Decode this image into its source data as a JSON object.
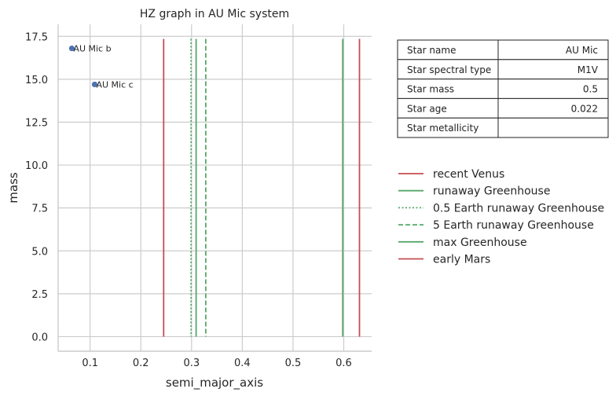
{
  "chart_data": {
    "type": "scatter",
    "title": "HZ graph in AU Mic system",
    "xlabel": "semi_major_axis",
    "ylabel": "mass",
    "xlim": [
      0.037,
      0.655
    ],
    "ylim": [
      -0.85,
      18.2
    ],
    "xticks": [
      0.1,
      0.2,
      0.3,
      0.4,
      0.5,
      0.6
    ],
    "xtick_labels": [
      "0.1",
      "0.2",
      "0.3",
      "0.4",
      "0.5",
      "0.6"
    ],
    "yticks": [
      0.0,
      2.5,
      5.0,
      7.5,
      10.0,
      12.5,
      15.0,
      17.5
    ],
    "ytick_labels": [
      "0.0",
      "2.5",
      "5.0",
      "7.5",
      "10.0",
      "12.5",
      "15.0",
      "17.5"
    ],
    "grid": true,
    "points": [
      {
        "label": "AU Mic b",
        "x": 0.064,
        "y": 16.8,
        "color": "#4c72b0"
      },
      {
        "label": "AU Mic c",
        "x": 0.109,
        "y": 14.7,
        "color": "#4c72b0"
      }
    ],
    "vlines": [
      {
        "name": "recent Venus",
        "x": 0.245,
        "color": "#c44e52",
        "style": "solid"
      },
      {
        "name": "runaway Greenhouse",
        "x": 0.309,
        "color": "#55a868",
        "style": "solid"
      },
      {
        "name": "0.5 Earth runaway Greenhouse",
        "x": 0.299,
        "color": "#55a868",
        "style": "dotted"
      },
      {
        "name": "5 Earth runaway Greenhouse",
        "x": 0.328,
        "color": "#55a868",
        "style": "dashed"
      },
      {
        "name": "max Greenhouse",
        "x": 0.598,
        "color": "#55a868",
        "style": "solid"
      },
      {
        "name": "early Mars",
        "x": 0.631,
        "color": "#c44e52",
        "style": "solid"
      }
    ],
    "vline_ymax": 17.35,
    "legend_placement": "right"
  },
  "table": {
    "rows": [
      {
        "label": "Star name",
        "value": "AU Mic"
      },
      {
        "label": "Star spectral type",
        "value": "M1V"
      },
      {
        "label": "Star mass",
        "value": "0.5"
      },
      {
        "label": "Star age",
        "value": "0.022"
      },
      {
        "label": "Star metallicity",
        "value": ""
      }
    ]
  }
}
